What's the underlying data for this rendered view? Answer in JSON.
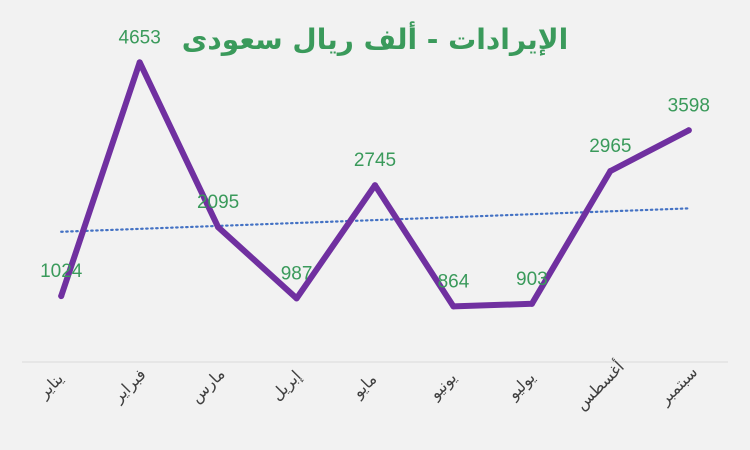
{
  "chart_data": {
    "type": "line",
    "title": "الإيرادات  - ألف ريال سعودى",
    "categories": [
      "يناير",
      "فبراير",
      "مارس",
      "إبريل",
      "مايو",
      "يونيو",
      "يوليو",
      "أغسطس",
      "سبتمبر"
    ],
    "series": [
      {
        "values": [
          1024,
          4653,
          2095,
          987,
          2745,
          864,
          903,
          2965,
          3598
        ]
      }
    ],
    "trendline": {
      "type": "linear",
      "style": "dotted"
    },
    "ylim": [
      0,
      5000
    ],
    "xlabel": "",
    "ylabel": "",
    "grid": false,
    "legend": "none",
    "colors": {
      "background": "#f2f2f2",
      "title": "#3a9a5b",
      "line": "#7030a0",
      "trend": "#4472c4",
      "data_label": "#3a9a5b",
      "axis": "#d9d9d9"
    }
  }
}
